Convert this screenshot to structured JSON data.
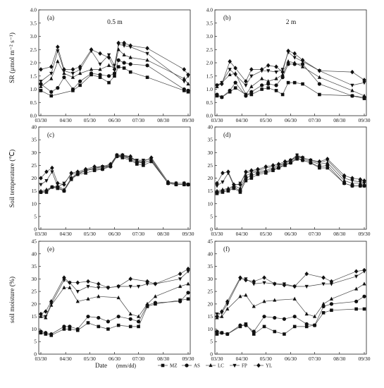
{
  "figure": {
    "x_axis_title": "Date",
    "x_axis_unit": "(mm/dd)",
    "legend": [
      {
        "name": "MZ",
        "marker": "square"
      },
      {
        "name": "AS",
        "marker": "circle"
      },
      {
        "name": "LC",
        "marker": "triangle-up"
      },
      {
        "name": "FP",
        "marker": "triangle-down"
      },
      {
        "name": "YL",
        "marker": "diamond"
      }
    ],
    "row_ylabels": [
      "SR (μmol m⁻² s⁻¹)",
      "Soil temperature (℃)",
      "soil moisture (%)"
    ]
  },
  "chart_data": [
    {
      "type": "line",
      "panel": "(a)",
      "depth": "0.5 m",
      "ylabel": "SR (μmol m⁻² s⁻¹)",
      "ylim": [
        0,
        4
      ],
      "yticks": [
        0.0,
        0.5,
        1.0,
        1.5,
        2.0,
        2.5,
        3.0,
        3.5,
        4.0
      ],
      "x": [
        "03/30",
        "04/12",
        "04/20",
        "04/28",
        "05/09",
        "05/18",
        "06/01",
        "06/12",
        "06/23",
        "06/30",
        "07/05",
        "07/12",
        "07/20",
        "07/30",
        "08/10",
        "08/20",
        "09/25",
        "09/30"
      ],
      "xticks": [
        "03/30",
        "04/30",
        "05/30",
        "06/30",
        "07/30",
        "08/30",
        "09/30"
      ],
      "series": [
        {
          "name": "MZ",
          "values": [
            0.95,
            0.75,
            null,
            null,
            0.95,
            1.15,
            1.55,
            1.45,
            1.25,
            1.5,
            1.85,
            1.8,
            1.65,
            null,
            1.45,
            null,
            0.95,
            0.9
          ]
        },
        {
          "name": "AS",
          "values": [
            1.2,
            0.9,
            1.05,
            1.45,
            1.0,
            1.3,
            1.6,
            1.55,
            1.5,
            1.6,
            2.1,
            2.0,
            1.95,
            null,
            1.9,
            null,
            1.0,
            0.95
          ]
        },
        {
          "name": "LC",
          "values": [
            1.1,
            1.4,
            2.05,
            1.6,
            1.45,
            1.6,
            1.75,
            1.75,
            1.9,
            1.8,
            2.5,
            2.3,
            2.2,
            null,
            2.1,
            null,
            1.4,
            1.2
          ]
        },
        {
          "name": "FP",
          "values": [
            1.3,
            1.6,
            2.45,
            1.7,
            1.6,
            1.75,
            2.45,
            1.95,
            2.3,
            1.9,
            2.7,
            2.65,
            2.6,
            null,
            2.35,
            null,
            1.3,
            1.5
          ]
        },
        {
          "name": "YL",
          "values": [
            1.75,
            1.85,
            2.6,
            1.75,
            1.75,
            1.85,
            2.5,
            2.35,
            2.2,
            1.75,
            2.75,
            2.75,
            2.65,
            null,
            2.55,
            null,
            1.75,
            1.55
          ]
        }
      ]
    },
    {
      "type": "line",
      "panel": "(b)",
      "depth": "2 m",
      "ylabel": "",
      "ylim": [
        0,
        4
      ],
      "yticks": [
        0.0,
        0.5,
        1.0,
        1.5,
        2.0,
        2.5,
        3.0,
        3.5,
        4.0
      ],
      "x": [
        "03/30",
        "04/05",
        "04/15",
        "04/22",
        "05/05",
        "05/12",
        "05/25",
        "06/02",
        "06/12",
        "06/20",
        "06/27",
        "07/05",
        "07/15",
        "07/25",
        "08/05",
        "08/15",
        "09/15",
        "09/30"
      ],
      "xticks": [
        "03/30",
        "04/30",
        "05/30",
        "06/30",
        "07/30",
        "08/30",
        "09/30"
      ],
      "series": [
        {
          "name": "MZ",
          "values": [
            0.75,
            0.7,
            0.9,
            1.05,
            0.8,
            0.8,
            1.0,
            1.05,
            0.95,
            0.8,
            1.25,
            1.25,
            1.2,
            null,
            0.8,
            null,
            0.75,
            0.65
          ]
        },
        {
          "name": "AS",
          "values": [
            0.8,
            0.7,
            0.95,
            1.25,
            0.75,
            0.9,
            1.15,
            1.2,
            1.15,
            1.45,
            1.95,
            1.95,
            1.95,
            null,
            1.2,
            null,
            0.75,
            0.7
          ]
        },
        {
          "name": "LC",
          "values": [
            1.1,
            1.25,
            1.55,
            1.6,
            0.8,
            1.1,
            1.4,
            1.3,
            1.4,
            1.55,
            2.05,
            2.0,
            1.85,
            null,
            1.45,
            null,
            0.95,
            0.75
          ]
        },
        {
          "name": "FP",
          "values": [
            1.15,
            1.25,
            1.75,
            1.55,
            1.15,
            1.5,
            1.7,
            1.7,
            1.65,
            1.75,
            2.4,
            2.2,
            2.05,
            null,
            1.7,
            null,
            1.15,
            1.25
          ]
        },
        {
          "name": "YL",
          "values": [
            1.15,
            1.2,
            2.05,
            1.8,
            1.3,
            1.75,
            1.75,
            1.9,
            1.85,
            1.65,
            2.45,
            2.35,
            2.1,
            null,
            1.7,
            null,
            1.65,
            1.35
          ]
        }
      ]
    },
    {
      "type": "line",
      "panel": "(c)",
      "depth": "",
      "ylabel": "Soil temperature (℃)",
      "ylim": [
        0,
        40
      ],
      "yticks": [
        0,
        5,
        10,
        15,
        20,
        25,
        30,
        35,
        40
      ],
      "x": [
        "03/30",
        "04/06",
        "04/13",
        "04/20",
        "04/28",
        "05/07",
        "05/15",
        "05/25",
        "06/05",
        "06/15",
        "06/25",
        "07/03",
        "07/10",
        "07/20",
        "07/28",
        "08/05",
        "08/15",
        "09/05",
        "09/15",
        "09/25",
        "09/30"
      ],
      "xticks": [
        "03/30",
        "04/30",
        "05/30",
        "06/30",
        "07/30",
        "08/30",
        "09/30"
      ],
      "series": [
        {
          "name": "MZ",
          "values": [
            14.5,
            14.5,
            16.5,
            16,
            15,
            19.5,
            21.5,
            22,
            23,
            23.5,
            25,
            28.5,
            28,
            27,
            25.5,
            25,
            26.5,
            18,
            17.5,
            17.5,
            17.5
          ]
        },
        {
          "name": "AS",
          "values": [
            14.5,
            15,
            16.5,
            16.5,
            15,
            20,
            21.5,
            23,
            23.5,
            23.5,
            24.5,
            28.5,
            28.5,
            27.5,
            26,
            26,
            27,
            18,
            17.5,
            17.5,
            17.5
          ]
        },
        {
          "name": "LC",
          "values": [
            15,
            15.5,
            16.5,
            17,
            15.5,
            20,
            22,
            23,
            24,
            24,
            25,
            29,
            28.5,
            28,
            26.5,
            26,
            27,
            18,
            17.5,
            17.5,
            17.5
          ]
        },
        {
          "name": "FP",
          "values": [
            17.5,
            19,
            22.5,
            16.5,
            18,
            21.5,
            22,
            23,
            24,
            24.5,
            25,
            29,
            29,
            28,
            27,
            27,
            27.5,
            18,
            18,
            18,
            17.5
          ]
        },
        {
          "name": "YL",
          "values": [
            20,
            22.5,
            24,
            18,
            17.5,
            22,
            22.5,
            23.5,
            24.5,
            24.5,
            25.5,
            29,
            29,
            28.5,
            26.5,
            26.5,
            28,
            18.5,
            18,
            18,
            17.5
          ]
        }
      ]
    },
    {
      "type": "line",
      "panel": "(d)",
      "depth": "",
      "ylabel": "",
      "ylim": [
        0,
        40
      ],
      "yticks": [
        0,
        5,
        10,
        15,
        20,
        25,
        30,
        35,
        40
      ],
      "x": [
        "03/30",
        "04/06",
        "04/13",
        "04/20",
        "04/28",
        "05/05",
        "05/12",
        "05/20",
        "05/30",
        "06/08",
        "06/15",
        "06/23",
        "06/30",
        "07/08",
        "07/15",
        "07/25",
        "08/05",
        "08/15",
        "09/05",
        "09/15",
        "09/25",
        "09/30"
      ],
      "xticks": [
        "03/30",
        "04/30",
        "05/30",
        "06/30",
        "07/30",
        "08/30",
        "09/30"
      ],
      "series": [
        {
          "name": "MZ",
          "values": [
            14,
            14.5,
            15,
            16,
            14.5,
            19,
            20,
            21.5,
            22,
            23,
            24,
            25,
            26,
            27.5,
            27,
            26,
            24,
            24,
            18,
            17,
            17,
            17
          ]
        },
        {
          "name": "AS",
          "values": [
            14.5,
            15,
            15.5,
            16.5,
            15,
            20,
            21,
            22,
            22.5,
            23.5,
            24,
            25.5,
            26,
            28,
            27,
            26,
            24.5,
            25,
            18,
            17,
            17,
            17
          ]
        },
        {
          "name": "LC",
          "values": [
            15,
            15.5,
            16,
            17,
            16,
            21,
            22,
            22.5,
            23,
            24,
            24.5,
            26,
            26.5,
            29,
            27.5,
            26.5,
            25.5,
            26,
            19,
            18,
            18,
            17.5
          ]
        },
        {
          "name": "FP",
          "values": [
            17,
            18.5,
            22,
            17,
            18,
            22,
            22.5,
            23,
            24,
            24.5,
            25,
            26,
            27,
            29,
            28,
            27,
            26,
            27,
            20,
            19,
            18.5,
            18
          ]
        },
        {
          "name": "YL",
          "values": [
            18,
            22,
            22.5,
            17.5,
            17.5,
            22.5,
            23,
            23.5,
            24.5,
            25,
            25.5,
            26.5,
            27,
            28,
            28,
            27,
            26.5,
            27.5,
            21,
            20,
            19.5,
            19
          ]
        }
      ]
    },
    {
      "type": "line",
      "panel": "(e)",
      "depth": "",
      "ylabel": "soil moisture (%)",
      "ylim": [
        0,
        45
      ],
      "yticks": [
        0,
        5,
        10,
        15,
        20,
        25,
        30,
        35,
        40,
        45
      ],
      "x": [
        "03/30",
        "04/05",
        "04/12",
        "04/20",
        "04/28",
        "05/05",
        "05/15",
        "05/28",
        "06/10",
        "06/22",
        "07/05",
        "07/20",
        "07/30",
        "08/10",
        "08/20",
        "09/20",
        "09/30"
      ],
      "xticks": [
        "03/30",
        "04/30",
        "05/30",
        "06/30",
        "07/30",
        "08/30",
        "09/30"
      ],
      "series": [
        {
          "name": "MZ",
          "values": [
            8.5,
            8,
            7.5,
            null,
            10,
            10,
            9.5,
            12.5,
            11,
            10,
            11.5,
            11,
            11,
            19,
            20,
            21.5,
            22
          ]
        },
        {
          "name": "AS",
          "values": [
            9,
            8.5,
            8,
            null,
            11,
            11,
            10,
            15,
            14.5,
            13,
            15,
            14,
            13,
            19.5,
            20.5,
            21,
            24.5
          ]
        },
        {
          "name": "LC",
          "values": [
            15,
            14.5,
            19.5,
            null,
            26.5,
            26.5,
            21,
            22,
            23,
            null,
            22.5,
            16,
            15,
            20,
            23,
            27,
            28
          ]
        },
        {
          "name": "FP",
          "values": [
            15.5,
            15,
            20,
            null,
            29.5,
            28.5,
            25,
            27,
            26.5,
            26.5,
            27,
            27,
            27,
            28,
            28,
            30,
            33
          ]
        },
        {
          "name": "YL",
          "values": [
            16,
            17,
            21,
            null,
            30.5,
            28.5,
            28.5,
            29,
            28,
            26.5,
            27,
            30,
            null,
            29,
            28,
            32,
            34
          ]
        }
      ]
    },
    {
      "type": "line",
      "panel": "(f)",
      "depth": "",
      "ylabel": "",
      "ylim": [
        0,
        45
      ],
      "yticks": [
        0,
        5,
        10,
        15,
        20,
        25,
        30,
        35,
        40,
        45
      ],
      "x": [
        "03/30",
        "04/05",
        "04/12",
        "04/20",
        "04/28",
        "05/05",
        "05/15",
        "05/28",
        "06/10",
        "06/22",
        "07/05",
        "07/20",
        "07/30",
        "08/10",
        "08/20",
        "09/20",
        "09/30"
      ],
      "xticks": [
        "03/30",
        "04/30",
        "05/30",
        "06/30",
        "07/30",
        "08/30",
        "09/30"
      ],
      "series": [
        {
          "name": "MZ",
          "values": [
            8,
            8.5,
            8,
            null,
            11,
            12,
            8,
            11,
            9,
            8,
            11,
            11,
            11.5,
            16.5,
            17.5,
            18,
            18
          ]
        },
        {
          "name": "AS",
          "values": [
            9,
            8.5,
            8,
            null,
            11.5,
            11.5,
            9,
            15,
            14.5,
            14,
            15,
            12,
            11.5,
            19,
            20,
            21,
            23
          ]
        },
        {
          "name": "LC",
          "values": [
            14.5,
            15,
            18,
            null,
            23,
            23.5,
            19,
            21,
            21.5,
            null,
            22,
            16,
            15,
            20,
            22,
            26,
            28
          ]
        },
        {
          "name": "FP",
          "values": [
            16,
            16.5,
            20,
            null,
            30,
            30,
            28,
            28.5,
            28,
            28,
            27,
            27,
            null,
            28,
            28,
            31,
            33
          ]
        },
        {
          "name": "YL",
          "values": [
            15,
            17,
            21,
            null,
            30.5,
            29.5,
            29,
            30.5,
            28,
            27.5,
            27,
            32,
            null,
            30.5,
            29,
            33,
            33.5
          ]
        }
      ]
    }
  ]
}
